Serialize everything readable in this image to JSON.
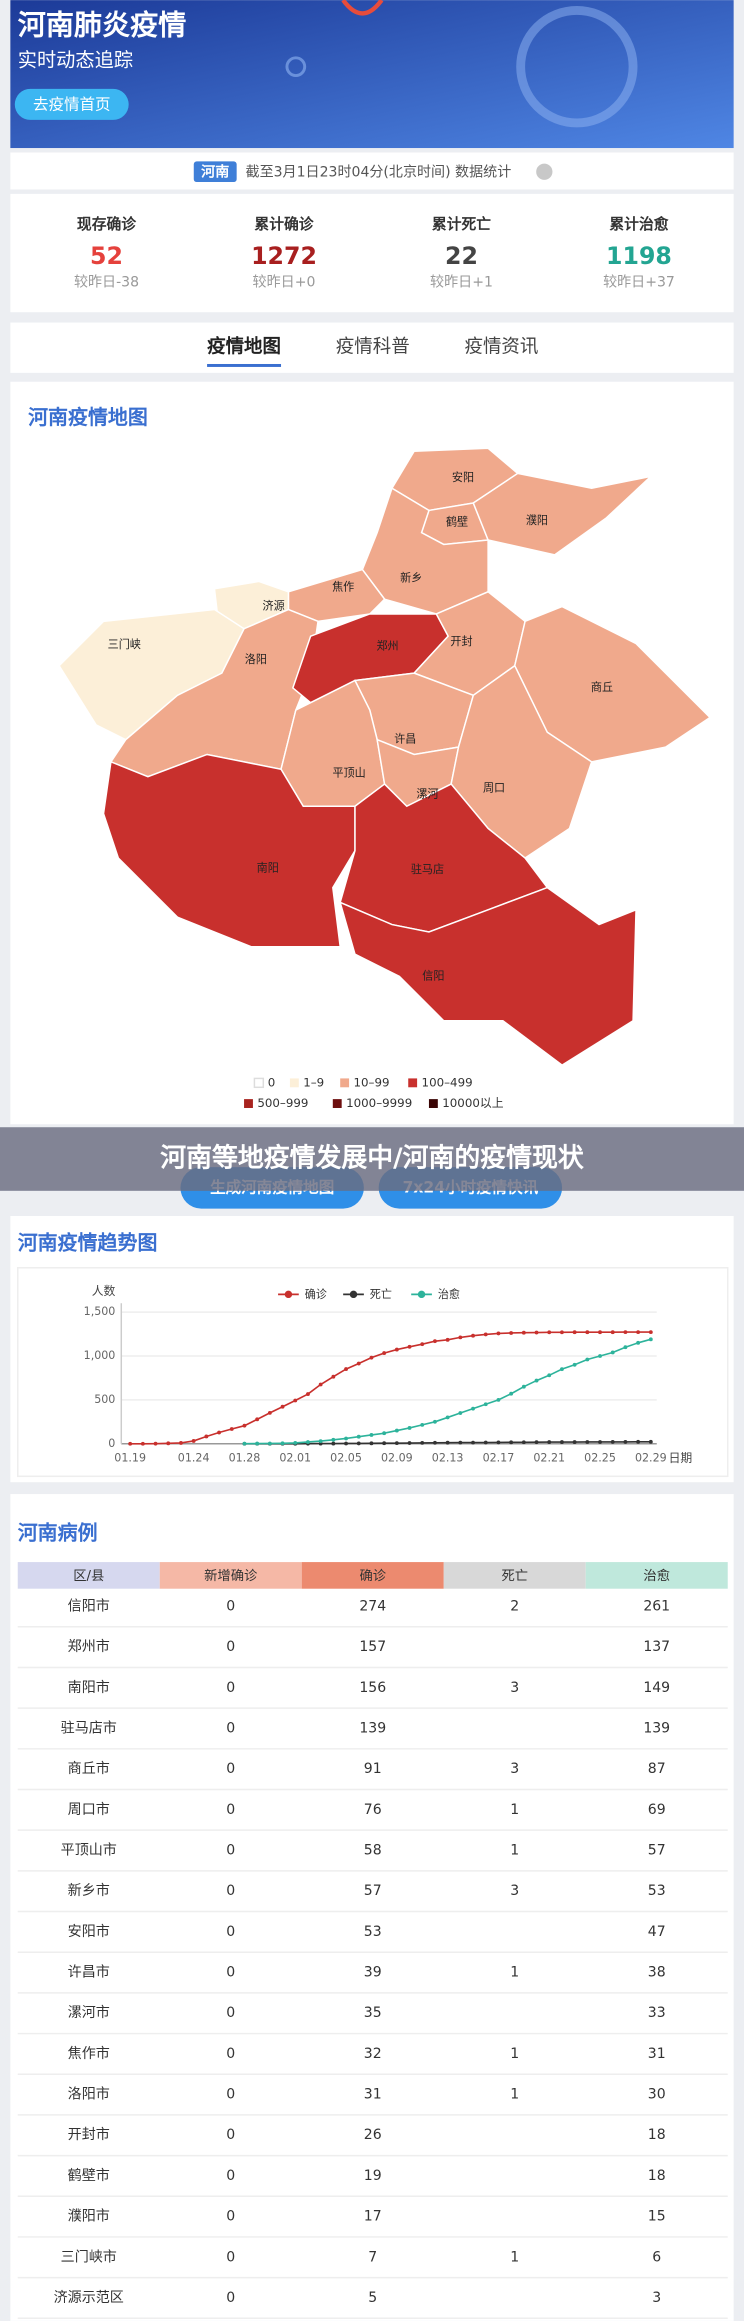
{
  "header": {
    "title": "河南肺炎疫情",
    "subtitle": "实时动态追踪",
    "button": "去疫情首页"
  },
  "region": {
    "tag": "河南",
    "time": "截至3月1日23时04分(北京时间) 数据统计"
  },
  "stats": [
    {
      "label": "现存确诊",
      "value": 52,
      "change": "较昨日-38",
      "color": "#e5413c"
    },
    {
      "label": "累计确诊",
      "value": 1272,
      "change": "较昨日+0",
      "color": "#a81f1f"
    },
    {
      "label": "累计死亡",
      "value": 22,
      "change": "较昨日+1",
      "color": "#444444"
    },
    {
      "label": "累计治愈",
      "value": 1198,
      "change": "较昨日+37",
      "color": "#23a592"
    }
  ],
  "tabs": [
    "疫情地图",
    "疫情科普",
    "疫情资讯"
  ],
  "map": {
    "title": "河南疫情地图",
    "cities": [
      {
        "name": "安阳",
        "color": "#f0a98c"
      },
      {
        "name": "鹤壁",
        "color": "#f0a98c"
      },
      {
        "name": "濮阳",
        "color": "#f0a98c"
      },
      {
        "name": "新乡",
        "color": "#f0a98c"
      },
      {
        "name": "焦作",
        "color": "#f0a98c"
      },
      {
        "name": "济源",
        "color": "#fcefd8"
      },
      {
        "name": "三门峡",
        "color": "#fcefd8"
      },
      {
        "name": "洛阳",
        "color": "#f0a98c"
      },
      {
        "name": "郑州",
        "color": "#c8302d"
      },
      {
        "name": "开封",
        "color": "#f0a98c"
      },
      {
        "name": "商丘",
        "color": "#f0a98c"
      },
      {
        "name": "许昌",
        "color": "#f0a98c"
      },
      {
        "name": "平顶山",
        "color": "#f0a98c"
      },
      {
        "name": "漯河",
        "color": "#f0a98c"
      },
      {
        "name": "周口",
        "color": "#f0a98c"
      },
      {
        "name": "南阳",
        "color": "#c8302d"
      },
      {
        "name": "驻马店",
        "color": "#c8302d"
      },
      {
        "name": "信阳",
        "color": "#c8302d"
      }
    ],
    "legend": [
      {
        "label": "0",
        "color": "#ffffff"
      },
      {
        "label": "1–9",
        "color": "#fcefd8"
      },
      {
        "label": "10–99",
        "color": "#f0a98c"
      },
      {
        "label": "100–499",
        "color": "#c8302d"
      },
      {
        "label": "500–999",
        "color": "#a8231f"
      },
      {
        "label": "1000–9999",
        "color": "#6e0f0f"
      },
      {
        "label": "10000以上",
        "color": "#3a0404"
      }
    ],
    "buttons": [
      "生成河南疫情地图",
      "7x24小时疫情快讯"
    ]
  },
  "overlay_title": "河南等地疫情发展中/河南的疫情现状",
  "chart_data": {
    "type": "line",
    "title": "河南疫情趋势图",
    "y_label": "人数",
    "x_label": "日期",
    "x": [
      "01.19",
      null,
      null,
      null,
      null,
      "01.24",
      null,
      null,
      null,
      "01.28",
      null,
      null,
      null,
      "02.01",
      null,
      null,
      null,
      "02.05",
      null,
      null,
      null,
      "02.09",
      null,
      null,
      null,
      "02.13",
      null,
      null,
      null,
      "02.17",
      null,
      null,
      null,
      "02.21",
      null,
      null,
      null,
      "02.25",
      null,
      null,
      null,
      "02.29"
    ],
    "series": [
      {
        "name": "确诊",
        "color": "#c8302d",
        "values": [
          0,
          0,
          1,
          5,
          9,
          32,
          83,
          128,
          168,
          206,
          278,
          352,
          422,
          493,
          566,
          675,
          764,
          851,
          914,
          981,
          1033,
          1073,
          1105,
          1135,
          1169,
          1184,
          1212,
          1231,
          1246,
          1257,
          1262,
          1265,
          1267,
          1270,
          1270,
          1271,
          1271,
          1271,
          1271,
          1272,
          1272,
          1272
        ]
      },
      {
        "name": "死亡",
        "color": "#333333",
        "values": [
          null,
          null,
          null,
          null,
          null,
          null,
          null,
          null,
          null,
          0,
          0,
          0,
          0,
          0,
          1,
          2,
          2,
          3,
          4,
          5,
          6,
          7,
          8,
          10,
          11,
          12,
          13,
          13,
          14,
          15,
          16,
          17,
          18,
          19,
          19,
          19,
          20,
          20,
          21,
          21,
          22,
          22
        ]
      },
      {
        "name": "治愈",
        "color": "#2db39b",
        "values": [
          null,
          null,
          null,
          null,
          null,
          null,
          null,
          null,
          null,
          1,
          2,
          3,
          5,
          10,
          20,
          30,
          45,
          60,
          80,
          100,
          120,
          150,
          180,
          215,
          250,
          300,
          350,
          400,
          450,
          500,
          570,
          650,
          720,
          780,
          850,
          900,
          960,
          1000,
          1040,
          1100,
          1150,
          1190
        ]
      }
    ],
    "ylim": [
      0,
      1500
    ],
    "yticks": [
      0,
      500,
      {
        "value": 1000,
        "label": "1,000"
      },
      {
        "value": 1500,
        "label": "1,500"
      }
    ],
    "grid": true
  },
  "table": {
    "title": "河南病例",
    "header": [
      "区/县",
      "新增确诊",
      "确诊",
      "死亡",
      "治愈"
    ],
    "rows": [
      [
        "信阳市",
        0,
        274,
        2,
        261
      ],
      [
        "郑州市",
        0,
        157,
        null,
        137
      ],
      [
        "南阳市",
        0,
        156,
        3,
        149
      ],
      [
        "驻马店市",
        0,
        139,
        null,
        139
      ],
      [
        "商丘市",
        0,
        91,
        3,
        87
      ],
      [
        "周口市",
        0,
        76,
        1,
        69
      ],
      [
        "平顶山市",
        0,
        58,
        1,
        57
      ],
      [
        "新乡市",
        0,
        57,
        3,
        53
      ],
      [
        "安阳市",
        0,
        53,
        null,
        47
      ],
      [
        "许昌市",
        0,
        39,
        1,
        38
      ],
      [
        "漯河市",
        0,
        35,
        null,
        33
      ],
      [
        "焦作市",
        0,
        32,
        1,
        31
      ],
      [
        "洛阳市",
        0,
        31,
        1,
        30
      ],
      [
        "开封市",
        0,
        26,
        null,
        18
      ],
      [
        "鹤壁市",
        0,
        19,
        null,
        18
      ],
      [
        "濮阳市",
        0,
        17,
        null,
        15
      ],
      [
        "三门峡市",
        0,
        7,
        1,
        6
      ],
      [
        "济源示范区",
        0,
        5,
        null,
        3
      ]
    ]
  }
}
